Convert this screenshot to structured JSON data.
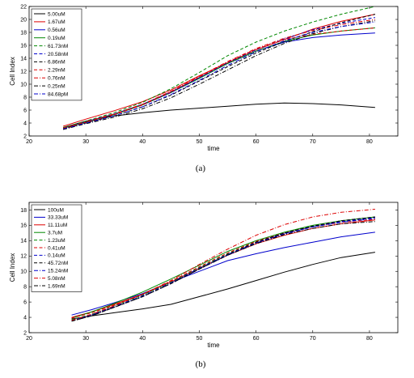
{
  "chart_data": [
    {
      "type": "line",
      "caption": "(a)",
      "xlabel": "time",
      "ylabel": "Cell Index",
      "xlim": [
        20,
        85
      ],
      "ylim": [
        2,
        22
      ],
      "xticks": [
        20,
        30,
        40,
        50,
        60,
        70,
        80
      ],
      "yticks": [
        2,
        4,
        6,
        8,
        10,
        12,
        14,
        16,
        18,
        20,
        22
      ],
      "x": [
        26,
        30,
        35,
        40,
        45,
        50,
        55,
        60,
        65,
        70,
        75,
        81
      ],
      "legend_position": "top-left",
      "series": [
        {
          "name": "5.00uM",
          "color": "#000000",
          "dash": "solid",
          "values": [
            3.3,
            4.3,
            5.1,
            5.6,
            6.0,
            6.3,
            6.6,
            6.9,
            7.1,
            7.0,
            6.8,
            6.4
          ]
        },
        {
          "name": "1.67uM",
          "color": "#dd0000",
          "dash": "solid",
          "values": [
            3.5,
            4.6,
            5.9,
            7.3,
            9.1,
            11.3,
            13.3,
            15.3,
            16.9,
            18.5,
            19.7,
            20.8
          ]
        },
        {
          "name": "0.56uM",
          "color": "#0000cc",
          "dash": "solid",
          "values": [
            3.2,
            4.2,
            5.4,
            6.9,
            8.8,
            11.0,
            13.2,
            15.1,
            16.5,
            17.2,
            17.6,
            17.9
          ]
        },
        {
          "name": "0.19uM",
          "color": "#008800",
          "dash": "solid",
          "values": [
            3.2,
            4.1,
            5.3,
            6.8,
            8.7,
            10.9,
            13.2,
            15.1,
            16.6,
            17.6,
            18.2,
            18.7
          ]
        },
        {
          "name": "61.73nM",
          "color": "#008800",
          "dash": "dashed",
          "values": [
            3.3,
            4.3,
            5.6,
            7.2,
            9.3,
            11.8,
            14.4,
            16.5,
            18.2,
            19.6,
            20.8,
            22.0
          ]
        },
        {
          "name": "20.58nM",
          "color": "#0000cc",
          "dash": "dashed",
          "values": [
            3.2,
            4.1,
            5.3,
            6.8,
            8.7,
            11.0,
            13.3,
            15.3,
            17.0,
            18.4,
            19.4,
            20.3
          ]
        },
        {
          "name": "6.86nM",
          "color": "#000000",
          "dash": "dashed",
          "values": [
            3.1,
            4.0,
            5.1,
            6.5,
            8.3,
            10.5,
            12.7,
            14.8,
            16.6,
            18.1,
            19.5,
            20.8
          ]
        },
        {
          "name": "2.29nM",
          "color": "#dd0000",
          "dash": "dashed",
          "values": [
            3.2,
            4.1,
            5.3,
            6.8,
            8.8,
            11.1,
            13.4,
            15.4,
            16.9,
            17.7,
            18.2,
            18.7
          ]
        },
        {
          "name": "0.76nM",
          "color": "#dd0000",
          "dash": "dashdot",
          "values": [
            3.2,
            4.2,
            5.4,
            6.9,
            8.9,
            11.2,
            13.5,
            15.5,
            17.1,
            18.3,
            19.2,
            20.0
          ]
        },
        {
          "name": "0.25nM",
          "color": "#000000",
          "dash": "dashdot",
          "values": [
            3.0,
            3.9,
            4.9,
            6.2,
            7.9,
            10.0,
            12.2,
            14.4,
            16.3,
            17.8,
            18.9,
            19.8
          ]
        },
        {
          "name": "84.68pM",
          "color": "#0000cc",
          "dash": "dashdot",
          "values": [
            3.1,
            4.0,
            5.1,
            6.5,
            8.4,
            10.6,
            12.9,
            15.0,
            16.7,
            18.0,
            18.9,
            19.6
          ]
        }
      ]
    },
    {
      "type": "line",
      "caption": "(b)",
      "xlabel": "time",
      "ylabel": "Cell Index",
      "xlim": [
        20,
        85
      ],
      "ylim": [
        2,
        19
      ],
      "xticks": [
        20,
        30,
        40,
        50,
        60,
        70,
        80
      ],
      "yticks": [
        2,
        4,
        6,
        8,
        10,
        12,
        14,
        16,
        18
      ],
      "x": [
        27.5,
        31,
        35,
        40,
        45,
        50,
        55,
        60,
        65,
        70,
        75,
        81
      ],
      "legend_position": "top-left",
      "series": [
        {
          "name": "100uM",
          "color": "#000000",
          "dash": "solid",
          "values": [
            3.8,
            4.2,
            4.6,
            5.1,
            5.7,
            6.7,
            7.7,
            8.8,
            9.9,
            10.9,
            11.8,
            12.5
          ]
        },
        {
          "name": "33.33uM",
          "color": "#0000cc",
          "dash": "solid",
          "values": [
            4.3,
            5.0,
            5.9,
            7.1,
            8.6,
            10.0,
            11.4,
            12.3,
            13.1,
            13.8,
            14.5,
            15.1
          ]
        },
        {
          "name": "11.11uM",
          "color": "#dd0000",
          "dash": "solid",
          "values": [
            4.0,
            4.7,
            5.7,
            7.0,
            8.6,
            10.4,
            12.1,
            13.6,
            14.7,
            15.6,
            16.2,
            16.7
          ]
        },
        {
          "name": "3.7uM",
          "color": "#008800",
          "dash": "solid",
          "values": [
            3.9,
            4.7,
            5.8,
            7.3,
            9.0,
            10.8,
            12.6,
            14.0,
            15.1,
            16.0,
            16.6,
            17.1
          ]
        },
        {
          "name": "1.23uM",
          "color": "#008800",
          "dash": "dashed",
          "values": [
            3.7,
            4.4,
            5.5,
            6.9,
            8.6,
            10.5,
            12.3,
            13.8,
            15.0,
            15.9,
            16.5,
            17.0
          ]
        },
        {
          "name": "0.41uM",
          "color": "#dd0000",
          "dash": "dashed",
          "values": [
            3.9,
            4.6,
            5.6,
            7.0,
            8.7,
            10.6,
            12.4,
            13.9,
            15.0,
            15.8,
            16.4,
            16.8
          ]
        },
        {
          "name": "0.14uM",
          "color": "#0000cc",
          "dash": "dashed",
          "values": [
            3.6,
            4.3,
            5.3,
            6.7,
            8.4,
            10.3,
            12.1,
            13.7,
            14.9,
            15.8,
            16.5,
            17.0
          ]
        },
        {
          "name": "45.72nM",
          "color": "#000000",
          "dash": "dashed",
          "values": [
            3.5,
            4.2,
            5.3,
            6.7,
            8.4,
            10.3,
            12.2,
            13.8,
            15.0,
            15.9,
            16.6,
            17.1
          ]
        },
        {
          "name": "15.24nM",
          "color": "#0000cc",
          "dash": "dashdot",
          "values": [
            3.6,
            4.3,
            5.4,
            6.8,
            8.5,
            10.4,
            12.2,
            13.7,
            14.9,
            15.8,
            16.4,
            16.9
          ]
        },
        {
          "name": "5.08nM",
          "color": "#dd0000",
          "dash": "dashdot",
          "values": [
            3.6,
            4.4,
            5.5,
            7.0,
            8.8,
            10.9,
            12.9,
            14.7,
            16.1,
            17.1,
            17.7,
            18.1
          ]
        },
        {
          "name": "1.69nM",
          "color": "#000000",
          "dash": "dashdot",
          "values": [
            3.5,
            4.2,
            5.3,
            6.7,
            8.4,
            10.3,
            12.1,
            13.6,
            14.8,
            15.6,
            16.2,
            16.5
          ]
        }
      ]
    }
  ]
}
